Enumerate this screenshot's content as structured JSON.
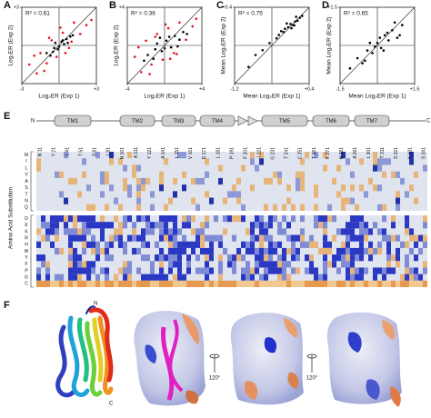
{
  "chart_data": [
    {
      "type": "scatter",
      "label": "A",
      "annotation": "R² = 0.61",
      "xlabel": "Log₂ER (Exp 1)",
      "ylabel": "Log₂ER (Exp 2)",
      "xlim": [
        -3,
        3
      ],
      "ylim": [
        -3,
        3
      ],
      "xticks": [
        -3,
        {
          "value": 3,
          "label": "+3"
        }
      ],
      "yticks": [
        {
          "value": 3,
          "label": "+3"
        }
      ],
      "series": [
        {
          "color": "#e8101a",
          "x": [
            -2.4,
            -1.8,
            -1.5,
            -1,
            -0.6,
            -0.2,
            0.3,
            0.8,
            1.2,
            1.7,
            2.2,
            -2.0,
            1.0,
            -0.8,
            0.5,
            2.6,
            -1.2,
            0.1
          ],
          "values": [
            -1.5,
            -2.2,
            -0.6,
            -1.4,
            0.4,
            -0.9,
            1.0,
            -0.2,
            1.8,
            0.9,
            1.6,
            -0.8,
            0.3,
            0.6,
            -0.6,
            2.0,
            -2.0,
            1.4
          ]
        },
        {
          "color": "#000000",
          "x": [
            -1,
            -0.7,
            -0.4,
            -0.1,
            0.2,
            0.4,
            0.6,
            0.9,
            1.1,
            -0.3,
            0.0,
            0.3,
            -0.5,
            0.7
          ],
          "values": [
            -0.6,
            -0.8,
            -0.2,
            -0.3,
            0.3,
            0.1,
            0.5,
            0.7,
            0.8,
            0.2,
            -0.1,
            0.4,
            -0.5,
            0.2
          ]
        }
      ]
    },
    {
      "type": "scatter",
      "label": "B",
      "annotation": "R² = 0.36",
      "xlabel": "Log₂ER (Exp 1)",
      "ylabel": "Log₂ER (Exp 2)",
      "xlim": [
        -4,
        4
      ],
      "ylim": [
        -4,
        4
      ],
      "xticks": [
        -4,
        {
          "value": 4,
          "label": "+4"
        }
      ],
      "yticks": [
        {
          "value": 4,
          "label": "+4"
        }
      ],
      "series": [
        {
          "color": "#e8101a",
          "x": [
            -3.2,
            -2.5,
            -2,
            -1.4,
            -0.8,
            -0.2,
            0.4,
            1.0,
            1.6,
            2.3,
            3.0,
            -2.8,
            1.3,
            -1.0,
            0.6,
            3.4,
            -1.6,
            0.1
          ],
          "values": [
            -1.2,
            -2.8,
            0.5,
            -2.0,
            1.2,
            -1.5,
            1.8,
            -0.8,
            2.4,
            0.6,
            2.0,
            -0.2,
            -0.9,
            0.9,
            -1.4,
            2.8,
            -3.0,
            2.2
          ]
        },
        {
          "color": "#000000",
          "x": [
            -1.8,
            -1.2,
            -0.8,
            -0.3,
            0.2,
            0.7,
            1.1,
            1.6,
            2.0,
            -0.5,
            0.0,
            0.5,
            -1.0,
            1.4,
            -2.2,
            2.4
          ],
          "values": [
            -1.0,
            -1.4,
            0.2,
            -0.6,
            0.5,
            -0.2,
            1.0,
            0.6,
            1.4,
            0.8,
            -0.3,
            0.9,
            -0.4,
            -0.1,
            -1.6,
            1.2
          ]
        }
      ]
    },
    {
      "type": "scatter",
      "label": "C",
      "annotation": "R² = 0.75",
      "xlabel": "Mean Log₂ER (Exp 1)",
      "ylabel": "Mean Log₂ER (Exp 2)",
      "xlim": [
        -1.2,
        0.4
      ],
      "ylim": [
        -1.2,
        0.4
      ],
      "xticks": [
        -1.2,
        {
          "value": 0.4,
          "label": "+0.4"
        }
      ],
      "yticks": [
        {
          "value": 0.4,
          "label": "+0.4"
        }
      ],
      "series": [
        {
          "color": "#000000",
          "x": [
            -0.9,
            -0.75,
            -0.6,
            -0.45,
            -0.3,
            -0.2,
            -0.12,
            -0.05,
            0.0,
            0.05,
            0.1,
            0.15,
            0.2,
            -0.08,
            0.02,
            0.08,
            -0.15,
            0.12,
            0.25,
            -0.25
          ],
          "values": [
            -0.85,
            -0.6,
            -0.5,
            -0.35,
            -0.25,
            -0.1,
            -0.05,
            -0.02,
            0.05,
            0.03,
            0.1,
            0.12,
            0.18,
            0.06,
            -0.04,
            0.02,
            -0.12,
            0.2,
            0.22,
            -0.18
          ]
        }
      ]
    },
    {
      "type": "scatter",
      "label": "D",
      "annotation": "R² = 0.65",
      "xlabel": "Mean Log₂ER (Exp 1)",
      "ylabel": "Mean Log₂ER (Exp 2)",
      "xlim": [
        -1.5,
        1.5
      ],
      "ylim": [
        -1.5,
        1.5
      ],
      "xticks": [
        -1.5,
        {
          "value": 1.5,
          "label": "+1.5"
        }
      ],
      "yticks": [
        {
          "value": 1.5,
          "label": "+1.5"
        }
      ],
      "series": [
        {
          "color": "#000000",
          "x": [
            -1.1,
            -0.8,
            -0.6,
            -0.4,
            -0.2,
            0.0,
            0.15,
            0.3,
            0.45,
            0.6,
            0.8,
            1.0,
            -0.3,
            0.1,
            0.25,
            -0.5,
            0.7,
            -0.1,
            0.4,
            0.9
          ],
          "values": [
            -0.9,
            -0.5,
            -0.7,
            -0.2,
            -0.3,
            0.1,
            -0.1,
            0.4,
            0.2,
            0.6,
            0.3,
            0.8,
            0.1,
            0.3,
            -0.2,
            -0.6,
            0.9,
            -0.05,
            0.5,
            0.4
          ]
        }
      ]
    }
  ],
  "heatmap": {
    "label": "E",
    "n_term": "N",
    "c_term": "C",
    "segments": [
      "TM1",
      "TM2",
      "TM3",
      "TM4",
      "TM5",
      "TM6",
      "TM7"
    ],
    "positions": [
      "N 11",
      "Y 21",
      "L 41",
      "T 51",
      "S 81",
      "L 91",
      "N 101",
      "A 111",
      "Y 121",
      "A 141",
      "L 151",
      "V 161",
      "D 171",
      "L 181",
      "P 191",
      "F 201",
      "I 221",
      "G 231",
      "T 241",
      "C 251",
      "T 261",
      "K 271",
      "H 281",
      "A 291",
      "L 301",
      "T 311",
      "S 321",
      "K 331",
      "S 341"
    ],
    "ylabel": "Amino Acid Substitution",
    "rows": [
      "M",
      "I",
      "L",
      "V",
      "A",
      "S",
      "T",
      "N",
      "Q",
      "D",
      "E",
      "K",
      "R",
      "H",
      "W",
      "Y",
      "F",
      "P",
      "G",
      "C"
    ]
  },
  "structure": {
    "label": "F",
    "n_label": "N",
    "c_label": "C",
    "rotation_1": "120°",
    "rotation_2": "120°"
  }
}
